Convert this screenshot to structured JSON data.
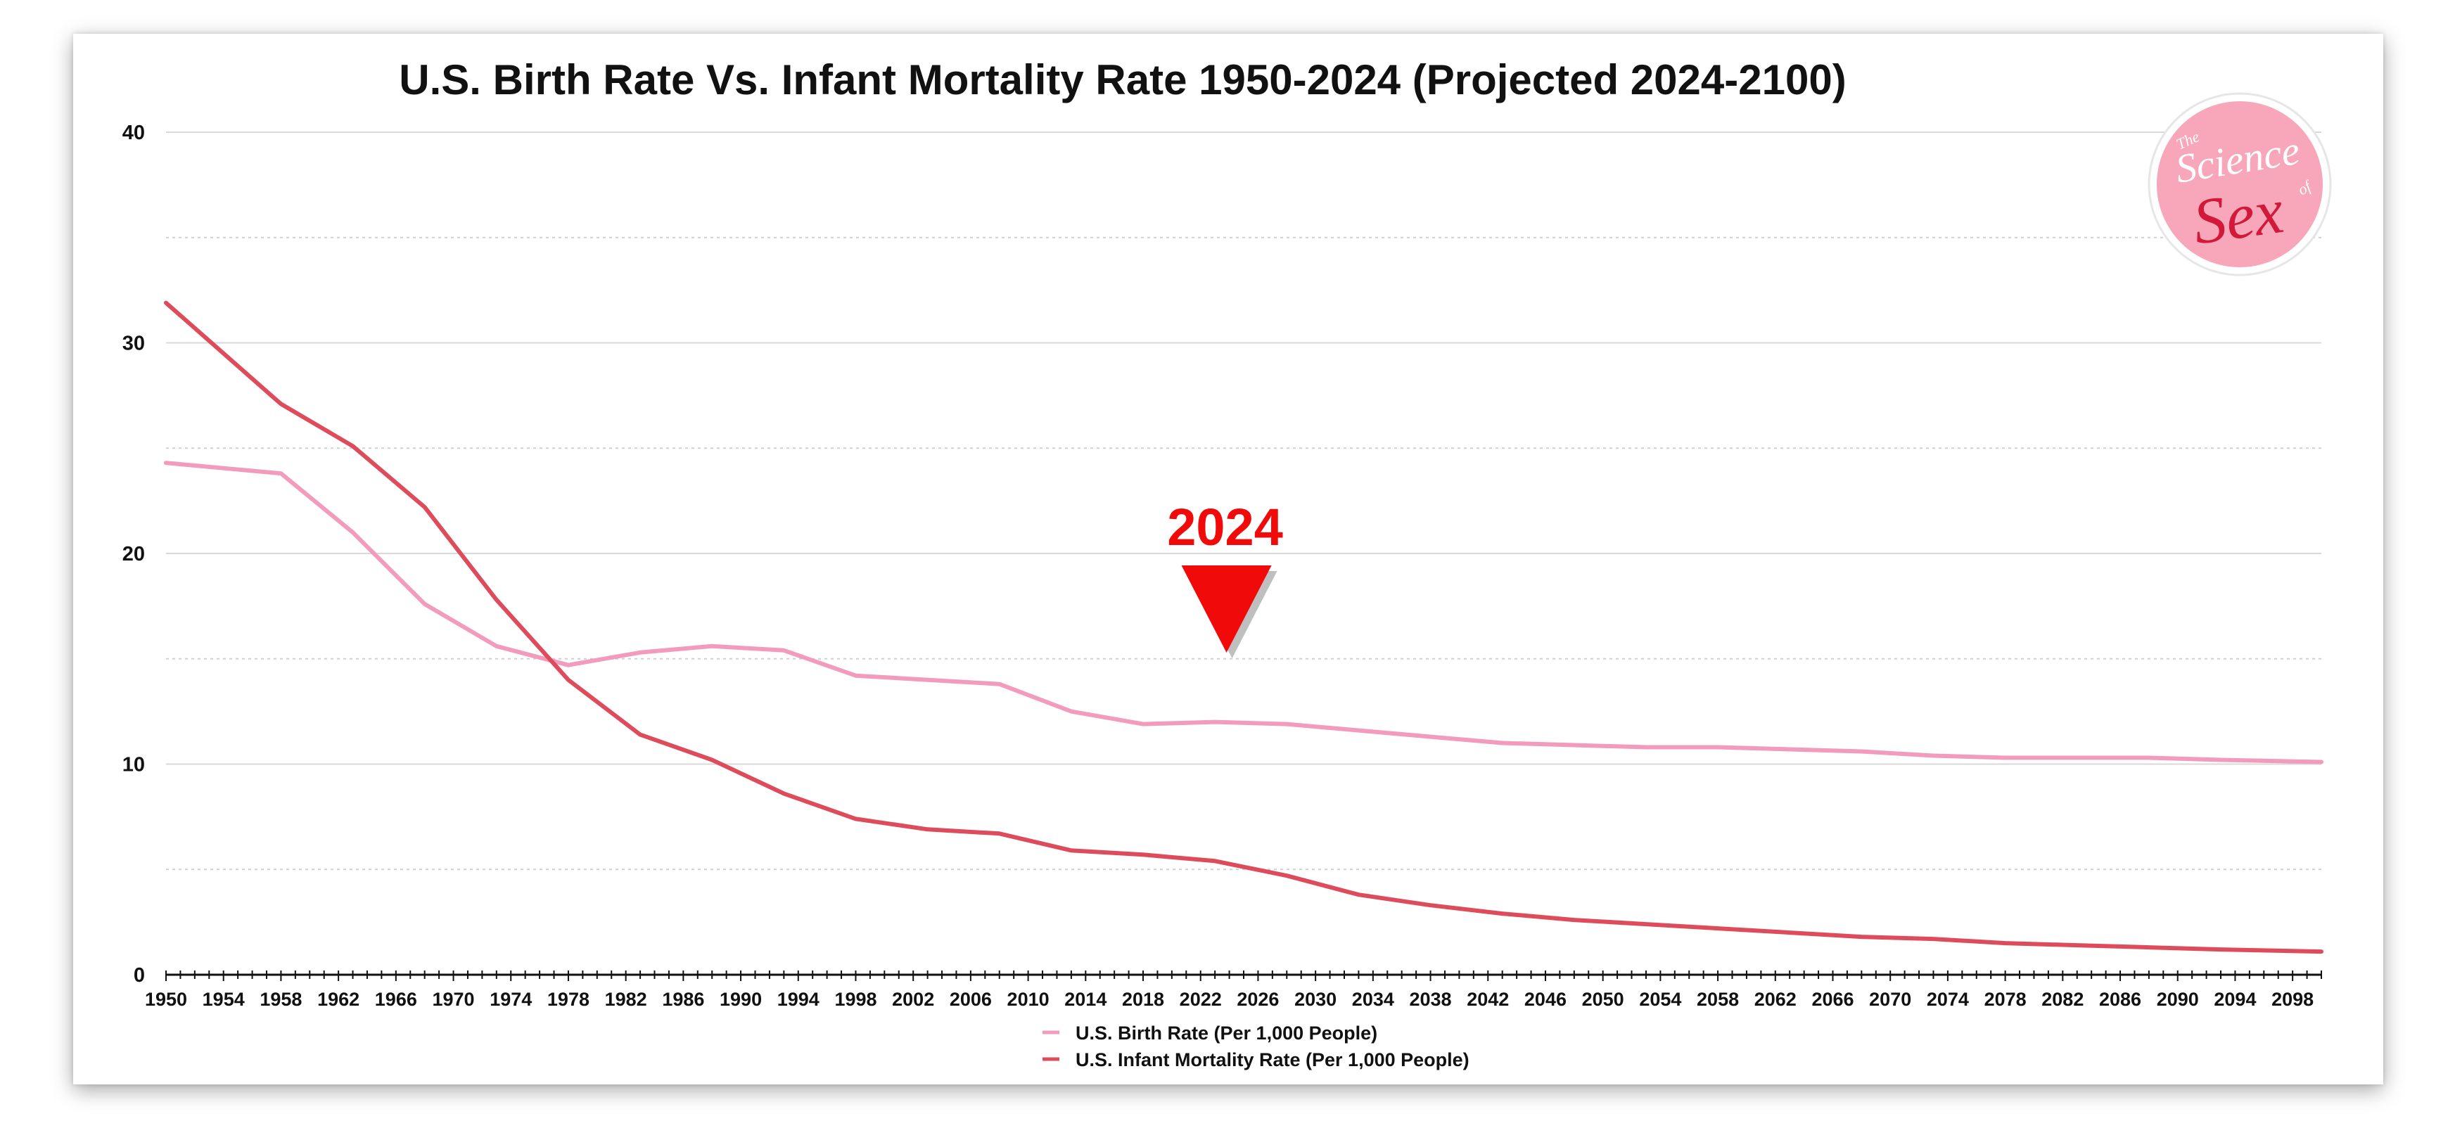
{
  "chart_data": {
    "type": "line",
    "title": "U.S. Birth Rate Vs. Infant Mortality Rate 1950-2024 (Projected 2024-2100)",
    "xlabel": "",
    "ylabel": "",
    "xlim": [
      1950,
      2100
    ],
    "ylim": [
      0,
      40
    ],
    "y_ticks": [
      "0",
      "10",
      "20",
      "30",
      "40"
    ],
    "x_ticks": [
      "1950",
      "1954",
      "1958",
      "1962",
      "1966",
      "1970",
      "1974",
      "1978",
      "1982",
      "1986",
      "1990",
      "1994",
      "1998",
      "2002",
      "2006",
      "2010",
      "2014",
      "2018",
      "2022",
      "2026",
      "2030",
      "2034",
      "2038",
      "2042",
      "2046",
      "2050",
      "2054",
      "2058",
      "2062",
      "2066",
      "2070",
      "2074",
      "2078",
      "2082",
      "2086",
      "2090",
      "2094",
      "2098"
    ],
    "grid": true,
    "legend_position": "bottom-center",
    "series": [
      {
        "name": "U.S. Birth Rate (Per 1,000 People)",
        "color": "#f29bbd",
        "x": [
          1950,
          1958,
          1963,
          1968,
          1973,
          1978,
          1983,
          1988,
          1993,
          1998,
          2003,
          2008,
          2013,
          2018,
          2023,
          2028,
          2033,
          2038,
          2043,
          2048,
          2053,
          2058,
          2063,
          2068,
          2073,
          2078,
          2083,
          2088,
          2093,
          2100
        ],
        "values": [
          24.3,
          23.8,
          21.0,
          17.6,
          15.6,
          14.7,
          15.3,
          15.6,
          15.4,
          14.2,
          14.0,
          13.8,
          12.5,
          11.9,
          12.0,
          11.9,
          11.6,
          11.3,
          11.0,
          10.9,
          10.8,
          10.8,
          10.7,
          10.6,
          10.4,
          10.3,
          10.3,
          10.3,
          10.2,
          10.1
        ]
      },
      {
        "name": "U.S. Infant Mortality Rate (Per 1,000 People)",
        "color": "#de4c5c",
        "x": [
          1950,
          1958,
          1963,
          1968,
          1973,
          1978,
          1983,
          1988,
          1993,
          1998,
          2003,
          2008,
          2013,
          2018,
          2023,
          2028,
          2033,
          2038,
          2043,
          2048,
          2053,
          2058,
          2063,
          2068,
          2073,
          2078,
          2083,
          2088,
          2093,
          2100
        ],
        "values": [
          31.9,
          27.1,
          25.1,
          22.2,
          17.8,
          14.0,
          11.4,
          10.2,
          8.6,
          7.4,
          6.9,
          6.7,
          5.9,
          5.7,
          5.4,
          4.7,
          3.8,
          3.3,
          2.9,
          2.6,
          2.4,
          2.2,
          2.0,
          1.8,
          1.7,
          1.5,
          1.4,
          1.3,
          1.2,
          1.1
        ]
      }
    ],
    "annotation": {
      "label": "2024",
      "x": 2024,
      "color": "#f00a0a"
    }
  },
  "logo": {
    "line1": "The",
    "line2": "Science",
    "line3": "of",
    "line4": "Sex",
    "color": "#f7a7b9"
  }
}
